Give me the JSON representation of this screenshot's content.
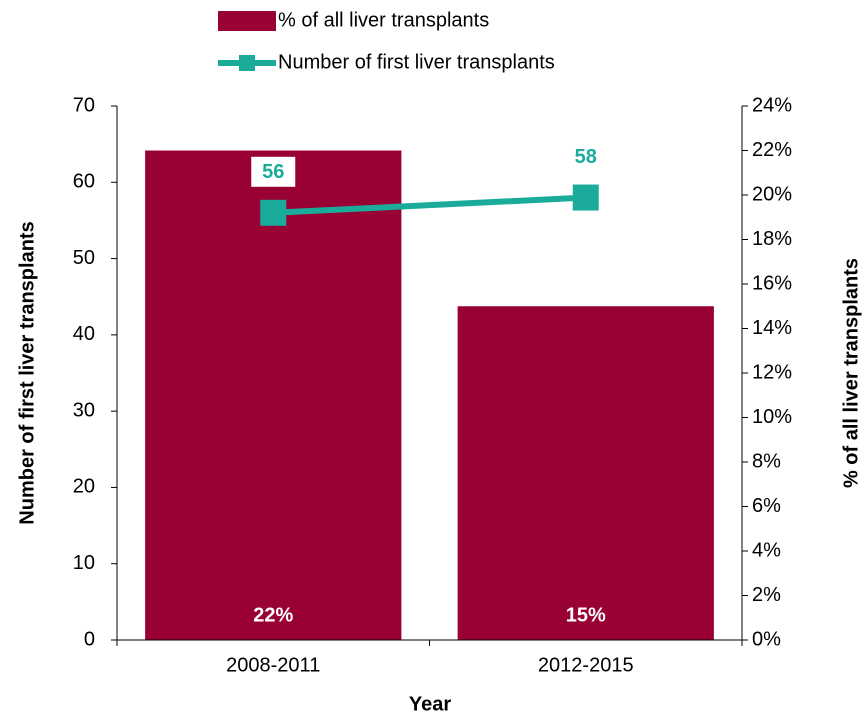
{
  "chart_data": {
    "type": "bar",
    "x_label": "Year",
    "y_label": "Number of first liver transplants",
    "y2_label": "% of all liver transplants",
    "categories": [
      "2008-2011",
      "2012-2015"
    ],
    "series": [
      {
        "name": "% of all liver transplants",
        "type": "bar",
        "axis": "y2",
        "color": "#990033",
        "values": [
          22,
          15
        ],
        "value_labels": [
          "22%",
          "15%"
        ]
      },
      {
        "name": "Number of first liver transplants",
        "type": "line",
        "color": "#1aab9b",
        "values": [
          56,
          58
        ]
      }
    ],
    "ylim": [
      0,
      70
    ],
    "yticks": [
      0,
      10,
      20,
      30,
      40,
      50,
      60,
      70
    ],
    "y2lim": [
      0,
      24
    ],
    "y2ticks": [
      {
        "value": 0,
        "label": "0%"
      },
      {
        "value": 2,
        "label": "2%"
      },
      {
        "value": 4,
        "label": "4%"
      },
      {
        "value": 6,
        "label": "6%"
      },
      {
        "value": 8,
        "label": "8%"
      },
      {
        "value": 10,
        "label": "10%"
      },
      {
        "value": 12,
        "label": "12%"
      },
      {
        "value": 14,
        "label": "14%"
      },
      {
        "value": 16,
        "label": "16%"
      },
      {
        "value": 18,
        "label": "18%"
      },
      {
        "value": 20,
        "label": "20%"
      },
      {
        "value": 22,
        "label": "22%"
      },
      {
        "value": 24,
        "label": "24%"
      }
    ],
    "legend": "top"
  }
}
